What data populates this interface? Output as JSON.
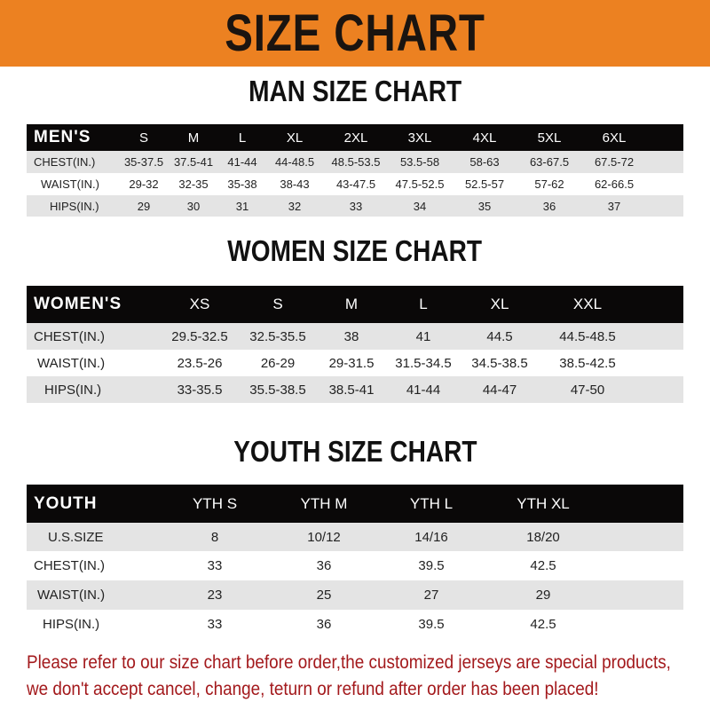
{
  "title": "SIZE CHART",
  "colors": {
    "banner": "#ec8121",
    "header_row": "#0a0808",
    "stripe": "#e4e4e4",
    "notice": "#a3191c"
  },
  "men": {
    "title": "MAN SIZE CHART",
    "header": "MEN'S",
    "sizes": [
      "S",
      "M",
      "L",
      "XL",
      "2XL",
      "3XL",
      "4XL",
      "5XL",
      "6XL"
    ],
    "rows": [
      {
        "label": "CHEST(IN.)",
        "values": [
          "35-37.5",
          "37.5-41",
          "41-44",
          "44-48.5",
          "48.5-53.5",
          "53.5-58",
          "58-63",
          "63-67.5",
          "67.5-72"
        ]
      },
      {
        "label": "WAIST(IN.)",
        "values": [
          "29-32",
          "32-35",
          "35-38",
          "38-43",
          "43-47.5",
          "47.5-52.5",
          "52.5-57",
          "57-62",
          "62-66.5"
        ]
      },
      {
        "label": "HIPS(IN.)",
        "values": [
          "29",
          "30",
          "31",
          "32",
          "33",
          "34",
          "35",
          "36",
          "37"
        ]
      }
    ]
  },
  "women": {
    "title": "WOMEN SIZE CHART",
    "header": "WOMEN'S",
    "sizes": [
      "XS",
      "S",
      "M",
      "L",
      "XL",
      "XXL"
    ],
    "rows": [
      {
        "label": "CHEST(IN.)",
        "values": [
          "29.5-32.5",
          "32.5-35.5",
          "38",
          "41",
          "44.5",
          "44.5-48.5"
        ]
      },
      {
        "label": "WAIST(IN.)",
        "values": [
          "23.5-26",
          "26-29",
          "29-31.5",
          "31.5-34.5",
          "34.5-38.5",
          "38.5-42.5"
        ]
      },
      {
        "label": "HIPS(IN.)",
        "values": [
          "33-35.5",
          "35.5-38.5",
          "38.5-41",
          "41-44",
          "44-47",
          "47-50"
        ]
      }
    ]
  },
  "youth": {
    "title": "YOUTH SIZE CHART",
    "header": "YOUTH",
    "sizes": [
      "YTH S",
      "YTH M",
      "YTH L",
      "YTH XL"
    ],
    "rows": [
      {
        "label": "U.S.SIZE",
        "values": [
          "8",
          "10/12",
          "14/16",
          "18/20"
        ]
      },
      {
        "label": "CHEST(IN.)",
        "values": [
          "33",
          "36",
          "39.5",
          "42.5"
        ]
      },
      {
        "label": "WAIST(IN.)",
        "values": [
          "23",
          "25",
          "27",
          "29"
        ]
      },
      {
        "label": "HIPS(IN.)",
        "values": [
          "33",
          "36",
          "39.5",
          "42.5"
        ]
      }
    ]
  },
  "notice": [
    "Please refer to our size chart before order,the customized jerseys are special products,",
    "we don't accept cancel, change, teturn or refund after order has been placed!"
  ]
}
